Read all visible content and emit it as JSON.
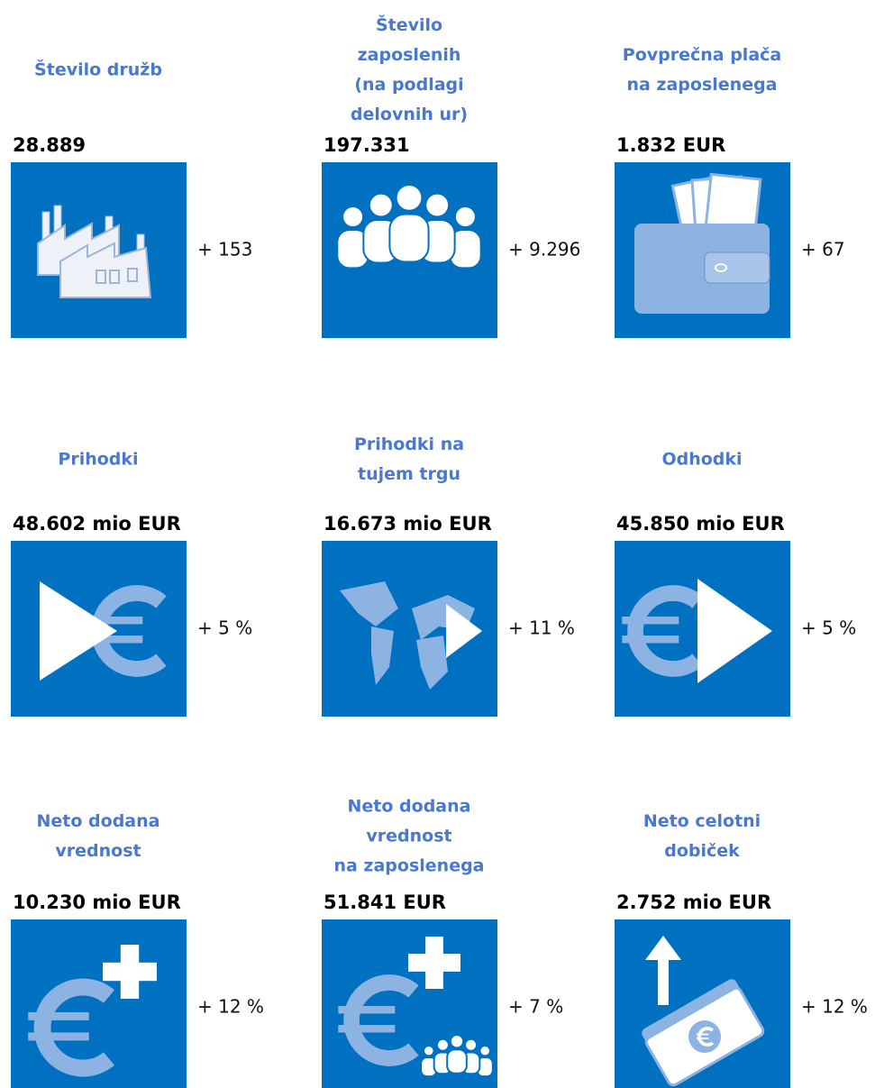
{
  "tiles": [
    {
      "title": [
        "Število družb"
      ],
      "value": "28.889",
      "change": "+ 153"
    },
    {
      "title": [
        "Število",
        "zaposlenih",
        "(na podlagi",
        "delovnih ur)"
      ],
      "value": "197.331",
      "change": "+ 9.296"
    },
    {
      "title": [
        "Povprečna plača",
        "na zaposlenega"
      ],
      "value": "1.832 EUR",
      "change": "+ 67"
    },
    {
      "title": [
        "Prihodki"
      ],
      "value": "48.602 mio EUR",
      "change": "+ 5 %"
    },
    {
      "title": [
        "Prihodki na",
        "tujem trgu"
      ],
      "value": "16.673 mio EUR",
      "change": "+ 11 %"
    },
    {
      "title": [
        "Odhodki"
      ],
      "value": "45.850 mio EUR",
      "change": "+ 5 %"
    },
    {
      "title": [
        "Neto dodana",
        "vrednost"
      ],
      "value": "10.230 mio EUR",
      "change": "+ 12 %"
    },
    {
      "title": [
        "Neto dodana",
        "vrednost",
        "na zaposlenega"
      ],
      "value": "51.841 EUR",
      "change": "+ 7 %"
    },
    {
      "title": [
        "Neto celotni",
        "dobiček"
      ],
      "value": "2.752 mio EUR",
      "change": "+ 12 %"
    }
  ]
}
